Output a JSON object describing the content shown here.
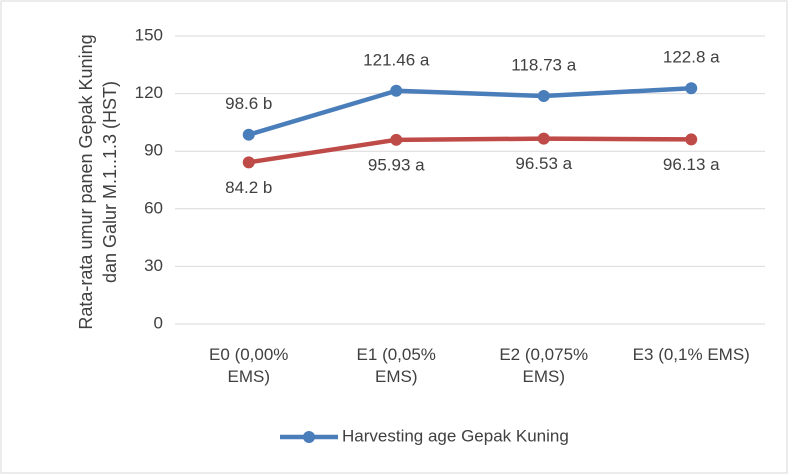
{
  "chart_data": {
    "type": "line",
    "y_label": "Rata-rata umur panen Gepak Kuning dan Galur M.1..1.3 (HST)",
    "categories": [
      "E0 (0,00% EMS)",
      "E1 (0,05% EMS)",
      "E2 (0,075% EMS)",
      "E3 (0,1% EMS)"
    ],
    "series": [
      {
        "name": "Harvesting age Gepak Kuning",
        "color": "#4a7ebb",
        "values": [
          98.6,
          121.46,
          118.73,
          122.8
        ],
        "value_labels": [
          "98.6 b",
          "121.46 a",
          "118.73 a",
          "122.8 a"
        ]
      },
      {
        "color": "#be4b48",
        "values": [
          84.2,
          95.93,
          96.53,
          96.13
        ],
        "value_labels": [
          "84.2 b",
          "95.93 a",
          "96.53 a",
          "96.13 a"
        ]
      }
    ],
    "ylim": [
      0,
      150
    ],
    "yticks": [
      0,
      30,
      60,
      90,
      120,
      150
    ],
    "grid": true,
    "legend": "bottom"
  }
}
